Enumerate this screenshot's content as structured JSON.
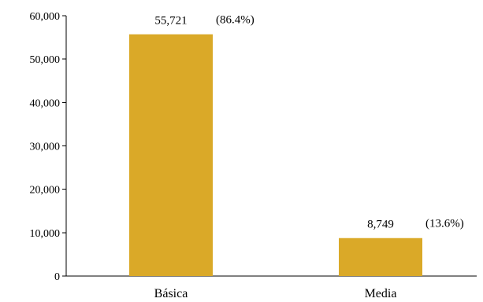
{
  "chart_data": {
    "type": "bar",
    "categories": [
      "Básica",
      "Media"
    ],
    "values": [
      55721,
      8749
    ],
    "value_labels": [
      "55,721",
      "8,749"
    ],
    "percent_labels": [
      "(86.4%)",
      "(13.6%)"
    ],
    "title": "",
    "xlabel": "",
    "ylabel": "",
    "ylim": [
      0,
      60000
    ],
    "yticks": [
      0,
      10000,
      20000,
      30000,
      40000,
      50000,
      60000
    ],
    "ytick_labels": [
      "0",
      "10,000",
      "20,000",
      "30,000",
      "40,000",
      "50,000",
      "60,000"
    ],
    "grid": false,
    "legend": "none",
    "bar_color": "#DAA928"
  }
}
